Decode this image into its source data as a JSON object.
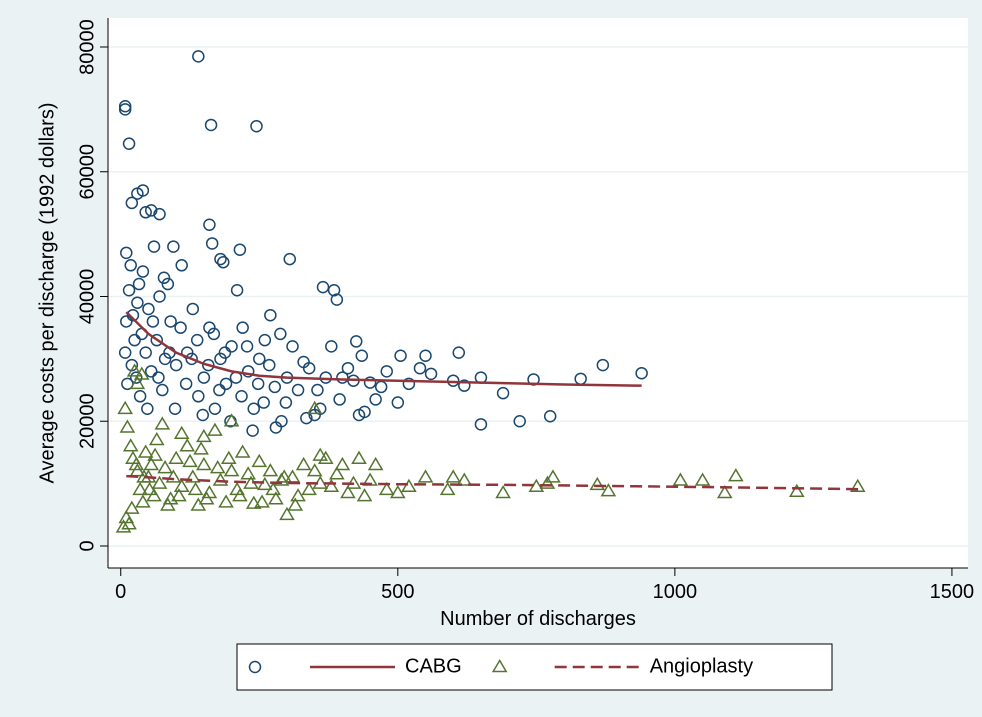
{
  "chart_data": {
    "type": "scatter",
    "x_label": "Number of discharges",
    "y_label": "Average costs per discharge (1992 dollars)",
    "xlim": [
      -23,
      1529
    ],
    "ylim": [
      -3530,
      84650
    ],
    "xticks": [
      0,
      500,
      1000,
      1500
    ],
    "yticks": [
      0,
      20000,
      40000,
      60000,
      80000
    ],
    "grid": true,
    "series": [
      {
        "marker": "circle",
        "color": "#1a476f",
        "x": [
          8,
          8,
          15,
          140,
          163,
          245,
          10,
          20,
          30,
          40,
          45,
          55,
          70,
          160,
          165,
          180,
          185,
          215,
          305,
          365,
          385,
          390,
          425,
          435,
          505,
          550,
          610,
          620,
          650,
          650,
          690,
          720,
          745,
          775,
          830,
          870,
          940,
          600,
          560,
          540,
          520,
          500,
          480,
          470,
          450,
          440,
          430,
          410,
          400,
          380,
          370,
          360,
          350,
          340,
          330,
          320,
          300,
          290,
          280,
          270,
          260,
          250,
          240,
          230,
          220,
          210,
          200,
          190,
          180,
          170,
          160,
          150,
          140,
          130,
          120,
          110,
          100,
          95,
          90,
          85,
          80,
          75,
          70,
          65,
          60,
          55,
          50,
          45,
          40,
          35,
          30,
          25,
          20,
          15,
          10,
          8,
          12,
          18,
          22,
          28,
          33,
          38,
          48,
          58,
          68,
          78,
          88,
          98,
          108,
          118,
          128,
          138,
          148,
          158,
          168,
          178,
          188,
          198,
          208,
          218,
          228,
          238,
          248,
          258,
          268,
          278,
          288,
          298,
          310,
          335,
          355,
          395,
          420,
          460
        ],
        "values": [
          70500,
          70000,
          64500,
          78500,
          67500,
          67300,
          47000,
          55000,
          56500,
          57000,
          53500,
          53800,
          53200,
          51500,
          48500,
          46000,
          45500,
          47500,
          46000,
          41500,
          41000,
          39500,
          32800,
          30500,
          30500,
          30500,
          31000,
          25700,
          27000,
          19500,
          24500,
          20000,
          26700,
          20800,
          26800,
          29000,
          27700,
          26500,
          27600,
          28500,
          26000,
          23000,
          28000,
          25500,
          26200,
          21500,
          21000,
          28500,
          27000,
          32000,
          27000,
          22000,
          21000,
          28500,
          29500,
          25000,
          27000,
          20000,
          19000,
          37000,
          33000,
          30000,
          22000,
          28000,
          35000,
          41000,
          32000,
          26000,
          30000,
          22000,
          35000,
          27000,
          24000,
          38000,
          31000,
          45000,
          29000,
          48000,
          36000,
          42000,
          30000,
          25000,
          40000,
          33000,
          48000,
          28000,
          38000,
          31000,
          44000,
          24000,
          39000,
          33000,
          29000,
          41000,
          36000,
          31000,
          26000,
          45000,
          37000,
          27000,
          42000,
          34000,
          22000,
          36000,
          27000,
          43000,
          31000,
          22000,
          35000,
          26000,
          30000,
          33000,
          21000,
          29000,
          34000,
          25000,
          31000,
          20000,
          27000,
          24000,
          32000,
          18500,
          26000,
          23000,
          29000,
          25500,
          34000,
          23000,
          32000,
          20500,
          25000,
          23500,
          26500,
          23500
        ]
      },
      {
        "name": "CABG",
        "line": "solid",
        "color": "#90353b",
        "x": [
          10,
          50,
          100,
          150,
          200,
          250,
          300,
          400,
          500,
          600,
          700,
          800,
          940
        ],
        "values": [
          37500,
          34000,
          31000,
          29200,
          28000,
          27300,
          27000,
          26700,
          26500,
          26300,
          26100,
          25900,
          25700
        ]
      },
      {
        "marker": "triangle",
        "color": "#55752f",
        "x": [
          5,
          10,
          15,
          20,
          25,
          30,
          38,
          8,
          12,
          18,
          22,
          30,
          35,
          40,
          45,
          50,
          55,
          60,
          65,
          70,
          80,
          90,
          100,
          110,
          120,
          130,
          140,
          150,
          160,
          170,
          180,
          190,
          200,
          210,
          220,
          230,
          240,
          250,
          260,
          270,
          280,
          290,
          300,
          310,
          320,
          330,
          340,
          350,
          360,
          370,
          380,
          390,
          400,
          410,
          420,
          430,
          440,
          450,
          460,
          480,
          500,
          520,
          550,
          590,
          600,
          620,
          690,
          750,
          770,
          780,
          860,
          880,
          1010,
          1050,
          1090,
          1110,
          1220,
          1330,
          350,
          200,
          150,
          110,
          75,
          28,
          42,
          52,
          62,
          85,
          95,
          105,
          125,
          135,
          145,
          155,
          175,
          195,
          215,
          235,
          255,
          275,
          295,
          315,
          360
        ],
        "values": [
          3000,
          4500,
          3500,
          6000,
          28000,
          26000,
          27500,
          22000,
          19000,
          16000,
          14000,
          12000,
          9000,
          7000,
          15000,
          11000,
          13000,
          8000,
          17000,
          10000,
          12500,
          7500,
          14000,
          9500,
          16000,
          11000,
          6500,
          13000,
          8500,
          18500,
          10500,
          7000,
          12000,
          9000,
          15000,
          11500,
          6800,
          13500,
          9800,
          12000,
          7500,
          10500,
          5000,
          11000,
          8000,
          13000,
          9000,
          12000,
          10000,
          14000,
          9500,
          11500,
          13000,
          8500,
          10000,
          14000,
          8000,
          10500,
          13000,
          9000,
          8500,
          9500,
          11000,
          9000,
          11000,
          10500,
          8500,
          9500,
          10000,
          11000,
          9800,
          8800,
          10500,
          10500,
          8500,
          11200,
          8700,
          9500,
          22000,
          20000,
          17500,
          18000,
          19500,
          13000,
          11000,
          9000,
          14500,
          6500,
          11000,
          8000,
          13500,
          9000,
          15500,
          7500,
          12500,
          14000,
          8000,
          10000,
          7000,
          9000,
          11000,
          6500,
          14500
        ]
      },
      {
        "name": "Angioplasty",
        "line": "dash",
        "color": "#90353b",
        "x": [
          10,
          50,
          100,
          200,
          300,
          400,
          500,
          700,
          900,
          1100,
          1335
        ],
        "values": [
          11200,
          11000,
          10700,
          10300,
          10100,
          10000,
          9900,
          9800,
          9600,
          9400,
          9100
        ]
      }
    ]
  }
}
